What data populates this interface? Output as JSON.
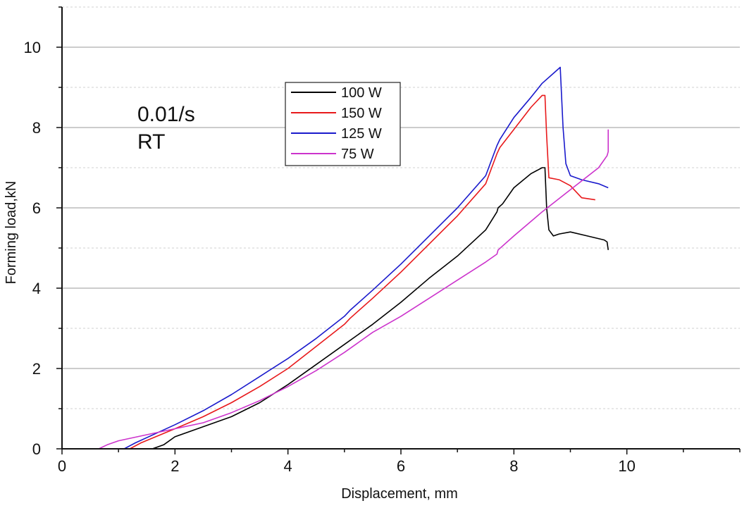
{
  "chart_data": {
    "type": "line",
    "xlabel": "Displacement, mm",
    "ylabel": "Forming load,kN",
    "xlim": [
      0,
      12
    ],
    "ylim": [
      0,
      11
    ],
    "xticks": [
      0,
      2,
      4,
      6,
      8,
      10
    ],
    "yticks": [
      0,
      2,
      4,
      6,
      8,
      10
    ],
    "grid": true,
    "legend_position": "upper-center",
    "annotations": [
      "0.01/s",
      "RT"
    ],
    "series": [
      {
        "name": "100 W",
        "color": "#000000",
        "x": [
          1.6,
          1.8,
          2.0,
          2.5,
          3.0,
          3.5,
          4.0,
          4.5,
          5.0,
          5.5,
          6.0,
          6.5,
          7.0,
          7.5,
          7.7,
          7.72,
          7.8,
          8.0,
          8.3,
          8.5,
          8.55,
          8.58,
          8.62,
          8.7,
          8.8,
          9.0,
          9.3,
          9.6,
          9.65,
          9.67
        ],
        "y": [
          0.0,
          0.1,
          0.3,
          0.55,
          0.8,
          1.15,
          1.6,
          2.1,
          2.6,
          3.1,
          3.65,
          4.25,
          4.8,
          5.45,
          5.9,
          6.0,
          6.1,
          6.5,
          6.85,
          7.0,
          7.0,
          6.0,
          5.45,
          5.3,
          5.35,
          5.4,
          5.3,
          5.2,
          5.15,
          4.95
        ]
      },
      {
        "name": "150 W",
        "color": "#e8191b",
        "x": [
          1.2,
          1.4,
          2.0,
          2.5,
          3.0,
          3.5,
          4.0,
          4.5,
          5.0,
          5.1,
          5.5,
          6.0,
          6.5,
          7.0,
          7.5,
          7.7,
          7.75,
          8.0,
          8.3,
          8.5,
          8.55,
          8.58,
          8.62,
          8.8,
          9.0,
          9.2,
          9.44
        ],
        "y": [
          0.0,
          0.15,
          0.5,
          0.8,
          1.15,
          1.55,
          2.0,
          2.55,
          3.1,
          3.25,
          3.75,
          4.4,
          5.1,
          5.8,
          6.6,
          7.35,
          7.5,
          7.95,
          8.5,
          8.8,
          8.8,
          7.8,
          6.75,
          6.7,
          6.55,
          6.25,
          6.2
        ]
      },
      {
        "name": "125 W",
        "color": "#1a1acc",
        "x": [
          1.1,
          1.3,
          2.0,
          2.5,
          3.0,
          3.5,
          4.0,
          4.5,
          5.0,
          5.1,
          5.5,
          6.0,
          6.5,
          7.0,
          7.5,
          7.7,
          7.75,
          8.0,
          8.3,
          8.5,
          8.7,
          8.82,
          8.87,
          8.92,
          9.0,
          9.2,
          9.5,
          9.67
        ],
        "y": [
          0.0,
          0.15,
          0.6,
          0.95,
          1.35,
          1.8,
          2.25,
          2.75,
          3.3,
          3.45,
          3.95,
          4.6,
          5.3,
          6.0,
          6.8,
          7.55,
          7.7,
          8.25,
          8.75,
          9.1,
          9.35,
          9.5,
          8.0,
          7.1,
          6.8,
          6.7,
          6.6,
          6.5
        ]
      },
      {
        "name": "75 W",
        "color": "#cc33cc",
        "x": [
          0.65,
          0.8,
          1.0,
          1.5,
          2.0,
          2.5,
          3.0,
          3.5,
          4.0,
          4.5,
          5.0,
          5.5,
          6.0,
          6.5,
          7.0,
          7.5,
          7.7,
          7.72,
          8.0,
          8.5,
          9.0,
          9.5,
          9.65,
          9.67,
          9.67
        ],
        "y": [
          0.0,
          0.1,
          0.2,
          0.35,
          0.5,
          0.65,
          0.9,
          1.2,
          1.55,
          1.95,
          2.4,
          2.9,
          3.3,
          3.75,
          4.2,
          4.65,
          4.85,
          4.95,
          5.3,
          5.9,
          6.45,
          7.0,
          7.3,
          7.4,
          7.95
        ]
      }
    ]
  }
}
